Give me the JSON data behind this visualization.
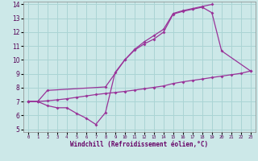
{
  "bg_color": "#cce8e8",
  "grid_color": "#aad4d4",
  "line_color": "#993399",
  "xlabel": "Windchill (Refroidissement éolien,°C)",
  "xlim": [
    -0.5,
    23.5
  ],
  "ylim": [
    4.8,
    14.2
  ],
  "yticks": [
    5,
    6,
    7,
    8,
    9,
    10,
    11,
    12,
    13,
    14
  ],
  "xticks": [
    0,
    1,
    2,
    3,
    4,
    5,
    6,
    7,
    8,
    9,
    10,
    11,
    12,
    13,
    14,
    15,
    16,
    17,
    18,
    19,
    20,
    21,
    22,
    23
  ],
  "line1_x": [
    0,
    1,
    2,
    3,
    4,
    5,
    6,
    7,
    8,
    9,
    10,
    11,
    12,
    13,
    14,
    15,
    16,
    17,
    18,
    19,
    20,
    23
  ],
  "line1_y": [
    7.0,
    7.0,
    6.7,
    6.55,
    6.55,
    6.15,
    5.8,
    5.35,
    6.2,
    9.1,
    10.0,
    10.7,
    11.15,
    11.5,
    12.0,
    13.3,
    13.5,
    13.65,
    13.8,
    13.4,
    10.65,
    9.2
  ],
  "line2_x": [
    0,
    1,
    2,
    8,
    10,
    11,
    12,
    13,
    14,
    15,
    16,
    17,
    18,
    19
  ],
  "line2_y": [
    7.0,
    7.0,
    7.8,
    8.05,
    10.0,
    10.75,
    11.3,
    11.75,
    12.2,
    13.35,
    13.55,
    13.7,
    13.85,
    14.0
  ],
  "line3_x": [
    0,
    1,
    2,
    3,
    4,
    5,
    6,
    7,
    8,
    9,
    10,
    11,
    12,
    13,
    14,
    15,
    16,
    17,
    18,
    19,
    20,
    21,
    22,
    23
  ],
  "line3_y": [
    7.0,
    7.0,
    7.05,
    7.12,
    7.2,
    7.3,
    7.4,
    7.5,
    7.58,
    7.65,
    7.73,
    7.82,
    7.92,
    8.02,
    8.12,
    8.3,
    8.42,
    8.52,
    8.62,
    8.73,
    8.83,
    8.93,
    9.03,
    9.2
  ]
}
